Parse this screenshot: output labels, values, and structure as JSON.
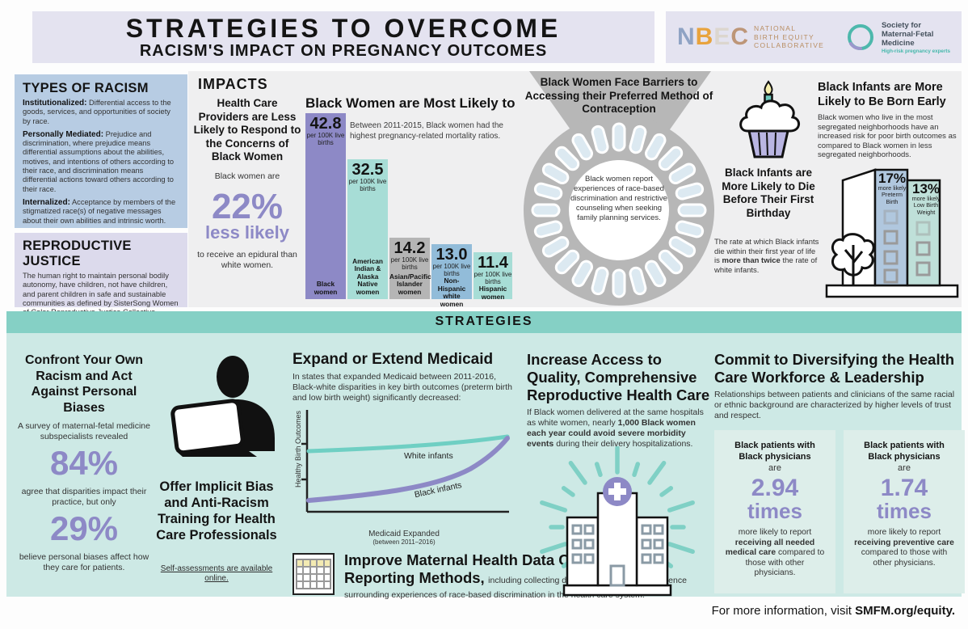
{
  "header": {
    "title_line1": "STRATEGIES TO OVERCOME",
    "title_line2": "RACISM'S IMPACT ON PREGNANCY OUTCOMES",
    "nbec": {
      "letters": [
        "N",
        "B",
        "E",
        "C"
      ],
      "name_lines": [
        "NATIONAL",
        "BIRTH EQUITY",
        "COLLABORATIVE"
      ]
    },
    "smfm": {
      "name_lines": [
        "Society for",
        "Maternal·Fetal",
        "Medicine"
      ],
      "tagline": "High-risk pregnancy experts"
    }
  },
  "left_column": {
    "types_of_racism": {
      "title": "TYPES OF RACISM",
      "terms": [
        {
          "term": "Institutionalized:",
          "definition": "Differential access to the goods, services, and opportunities of society by race."
        },
        {
          "term": "Personally Mediated:",
          "definition": "Prejudice and discrimination, where prejudice means differential assumptions about the abilities, motives, and intentions of others according to their race, and discrimination means differential actions toward others according to their race."
        },
        {
          "term": "Internalized:",
          "definition": "Acceptance by members of the stigmatized race(s) of negative messages about their own abilities and intrinsic worth."
        }
      ]
    },
    "reproductive_justice": {
      "title": "REPRODUCTIVE JUSTICE",
      "text": "The human right to maintain personal bodily autonomy, have children, not have children, and parent children in safe and sustainable communities as defined by SisterSong Women of Color Reproductive Justice Collective."
    }
  },
  "impacts": {
    "section_title": "IMPACTS",
    "epidural": {
      "heading": "Health Care Providers are Less Likely to Respond to the Concerns of Black Women",
      "intro": "Black women are",
      "stat_value": "22%",
      "stat_label": "less likely",
      "outro": "to receive an epidural than white women."
    },
    "contraception": {
      "heading": "Black Women Face Barriers to Accessing their Preferred Method of Contraception",
      "center_text": "Black women report experiences of race-based discrimination and restrictive counseling when seeking family planning services."
    },
    "infant_mortality": {
      "heading": "Black Infants are More Likely to Die Before Their First Birthday",
      "text_pre": "The rate at which Black infants die within their first year of life is ",
      "text_bold": "more than twice",
      "text_post": " the rate of white infants."
    },
    "born_early": {
      "heading": "Black Infants are More Likely to Be Born Early",
      "text": "Black women who live in the most segregated neighborhoods have an increased risk for poor birth outcomes as compared to Black women in less segregated neighborhoods.",
      "stats": [
        {
          "value": "17%",
          "label": "more likely Preterm Birth"
        },
        {
          "value": "13%",
          "label": "more likely Low Birth Weight"
        }
      ]
    }
  },
  "strategies": {
    "section_title": "STRATEGIES",
    "confront": {
      "heading": "Confront Your Own Racism and Act Against Personal Biases",
      "intro": "A survey of maternal-fetal medicine subspecialists revealed",
      "stat1": "84%",
      "mid": "agree that disparities impact their practice, but only",
      "stat2": "29%",
      "outro": "believe personal biases affect how they care for patients."
    },
    "training": {
      "heading": "Offer Implicit Bias and Anti-Racism Training for Health Care Professionals",
      "link": "Self-assessments are available online."
    },
    "medicaid": {
      "heading": "Expand or Extend Medicaid",
      "text": "In states that expanded Medicaid between 2011-2016, Black-white disparities in key birth outcomes (preterm birth and low birth weight) significantly decreased:"
    },
    "access": {
      "heading": "Increase Access to Quality, Comprehensive Reproductive Health Care",
      "text_pre": "If Black women delivered at the same hospitals as white women, nearly ",
      "text_bold": "1,000 Black women each year could avoid severe morbidity events",
      "text_post": " during their delivery hospitalizations."
    },
    "diversify": {
      "heading": "Commit to Diversifying the Health Care Workforce & Leadership",
      "text": "Relationships between patients and clinicians of the same racial or ethnic background are characterized by higher levels of trust and respect.",
      "boxes": [
        {
          "who": "Black patients with Black physicians",
          "are": "are",
          "stat": "2.94",
          "times": "times",
          "post_pre": "more likely to report ",
          "post_bold": "receiving all needed medical care",
          "post_post": " compared to those with other physicians."
        },
        {
          "who": "Black patients with Black physicians",
          "are": "are",
          "stat": "1.74",
          "times": "times",
          "post_pre": "more likely to report ",
          "post_bold": "receiving preventive care",
          "post_post": " compared to those with other physicians."
        }
      ]
    },
    "data_collection": {
      "heading_bold": "Improve Maternal Health Data Collection and Reporting Methods,",
      "text": " including collecting data and expanding the evidence surrounding experiences of race-based discrimination in the health care system."
    }
  },
  "footer": {
    "text_pre": "For more information, visit ",
    "link": "SMFM.org/equity."
  },
  "colors": {
    "accent_purple": "#8d89c6",
    "mint_bar": "#a7ddd6",
    "gray_bar": "#b5b5b5",
    "blue_bar": "#92bcd9",
    "teal_band": "#85d0c5",
    "light_mint_bg": "#cde9e5",
    "stat_box_bg": "#ddeeea",
    "light_blue_box": "#b7cce3",
    "lavender": "#e4e3f0",
    "impacts_gray": "#efeff0"
  },
  "chart_data": [
    {
      "type": "bar",
      "title": "Black Women are Most Likely to Die",
      "subtitle": "Between 2011-2015, Black women had the highest pregnancy-related mortality ratios.",
      "categories": [
        "Black women",
        "American Indian & Alaska Native women",
        "Asian/Pacific Islander women",
        "Non-Hispanic white women",
        "Hispanic women"
      ],
      "values": [
        42.8,
        32.5,
        14.2,
        13.0,
        11.4
      ],
      "display_values": [
        "42.8",
        "32.5",
        "14.2",
        "13.0",
        "11.4"
      ],
      "unit": "per 100K live births",
      "ylabel": "pregnancy-related mortality ratio per 100K live births",
      "ylim": [
        0,
        45
      ],
      "grid": false,
      "bar_colors": [
        "#8d89c6",
        "#a7ddd6",
        "#b5b5b5",
        "#92bcd9",
        "#a7ddd6"
      ]
    },
    {
      "type": "line",
      "title": "Expand or Extend Medicaid",
      "xlabel": "Medicaid Expanded",
      "xlabel_sub": "(between 2011–2016)",
      "ylabel": "Healthy Birth Outcomes",
      "grid": false,
      "series": [
        {
          "name": "White infants",
          "color": "#6fcfc3",
          "trend": "high, nearly flat, rising slightly left to right"
        },
        {
          "name": "Black infants",
          "color": "#8d89c6",
          "trend": "starts low, rises steeply to nearly converge with White infants"
        }
      ]
    }
  ]
}
